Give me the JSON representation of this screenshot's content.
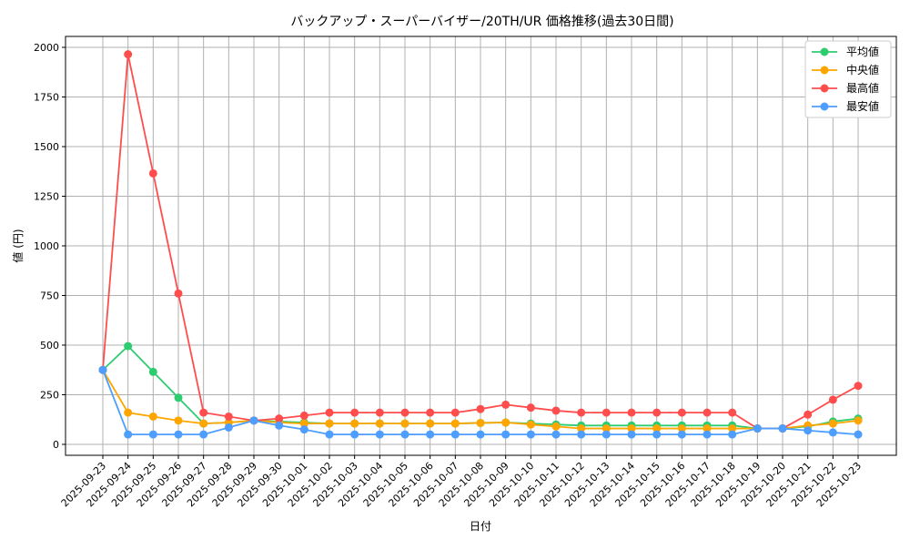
{
  "chart_data": {
    "type": "line",
    "title": "バックアップ・スーパーバイザー/20TH/UR 価格推移(過去30日間)",
    "xlabel": "日付",
    "ylabel": "値 (円)",
    "ylim": [
      -60,
      2060
    ],
    "yticks": [
      0,
      250,
      500,
      750,
      1000,
      1250,
      1500,
      1750,
      2000
    ],
    "grid": true,
    "legend_position": "top-right",
    "x": [
      "2025-09-23",
      "2025-09-24",
      "2025-09-25",
      "2025-09-26",
      "2025-09-27",
      "2025-09-28",
      "2025-09-29",
      "2025-09-30",
      "2025-10-01",
      "2025-10-02",
      "2025-10-03",
      "2025-10-04",
      "2025-10-05",
      "2025-10-06",
      "2025-10-07",
      "2025-10-08",
      "2025-10-09",
      "2025-10-10",
      "2025-10-11",
      "2025-10-12",
      "2025-10-13",
      "2025-10-14",
      "2025-10-15",
      "2025-10-16",
      "2025-10-17",
      "2025-10-18",
      "2025-10-19",
      "2025-10-20",
      "2025-10-21",
      "2025-10-22",
      "2025-10-23"
    ],
    "series": [
      {
        "name": "平均値",
        "color": "#2ecc71",
        "values": [
          375,
          495,
          365,
          235,
          105,
          110,
          120,
          115,
          110,
          105,
          105,
          105,
          105,
          105,
          105,
          108,
          110,
          105,
          100,
          95,
          95,
          95,
          95,
          95,
          95,
          95,
          80,
          80,
          90,
          115,
          130
        ]
      },
      {
        "name": "中央値",
        "color": "#ffa500",
        "values": [
          375,
          160,
          140,
          120,
          105,
          110,
          120,
          110,
          105,
          105,
          105,
          105,
          105,
          105,
          105,
          108,
          110,
          100,
          90,
          80,
          80,
          80,
          80,
          80,
          80,
          80,
          80,
          80,
          95,
          105,
          120
        ]
      },
      {
        "name": "最高値",
        "color": "#ff4d4d",
        "values": [
          375,
          1965,
          1365,
          760,
          160,
          140,
          120,
          130,
          145,
          160,
          160,
          160,
          160,
          160,
          160,
          178,
          200,
          185,
          170,
          160,
          160,
          160,
          160,
          160,
          160,
          160,
          80,
          80,
          150,
          225,
          295
        ]
      },
      {
        "name": "最安値",
        "color": "#4d9eff",
        "values": [
          375,
          50,
          50,
          50,
          50,
          85,
          120,
          95,
          75,
          50,
          50,
          50,
          50,
          50,
          50,
          50,
          50,
          50,
          50,
          50,
          50,
          50,
          50,
          50,
          50,
          50,
          80,
          80,
          70,
          60,
          50
        ]
      }
    ]
  }
}
